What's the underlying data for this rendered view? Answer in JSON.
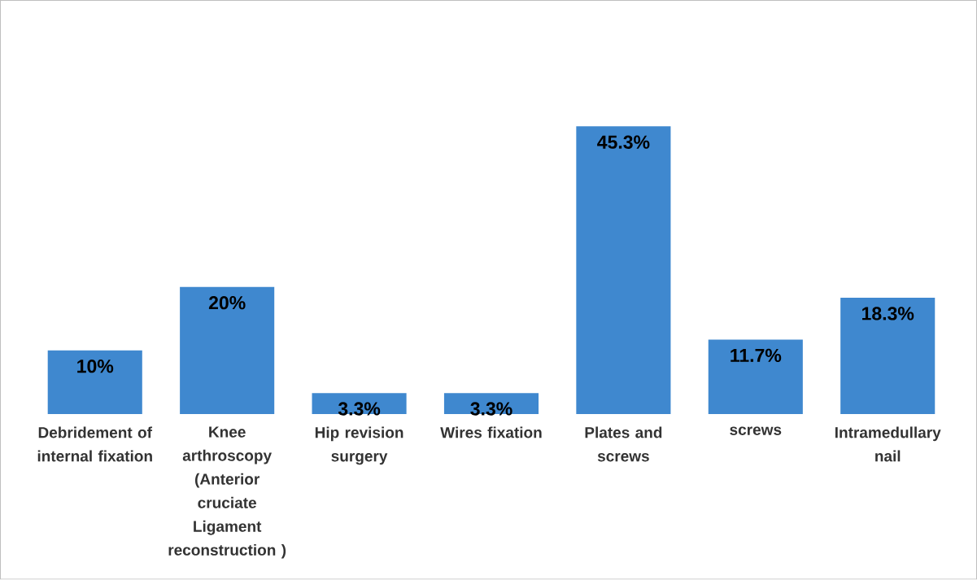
{
  "chart_data": {
    "type": "bar",
    "categories": [
      "Debridement of internal fixation",
      "Knee arthroscopy (Anterior cruciate Ligament reconstruction )",
      "Hip revision surgery",
      "Wires fixation",
      "Plates and screws",
      "screws",
      "Intramedullary nail"
    ],
    "values": [
      10,
      20,
      3.3,
      3.3,
      45.3,
      11.7,
      18.3
    ],
    "value_labels": [
      "10%",
      "20%",
      "3.3%",
      "3.3%",
      "45.3%",
      "11.7%",
      "18.3%"
    ],
    "color": "#3f88cf"
  }
}
